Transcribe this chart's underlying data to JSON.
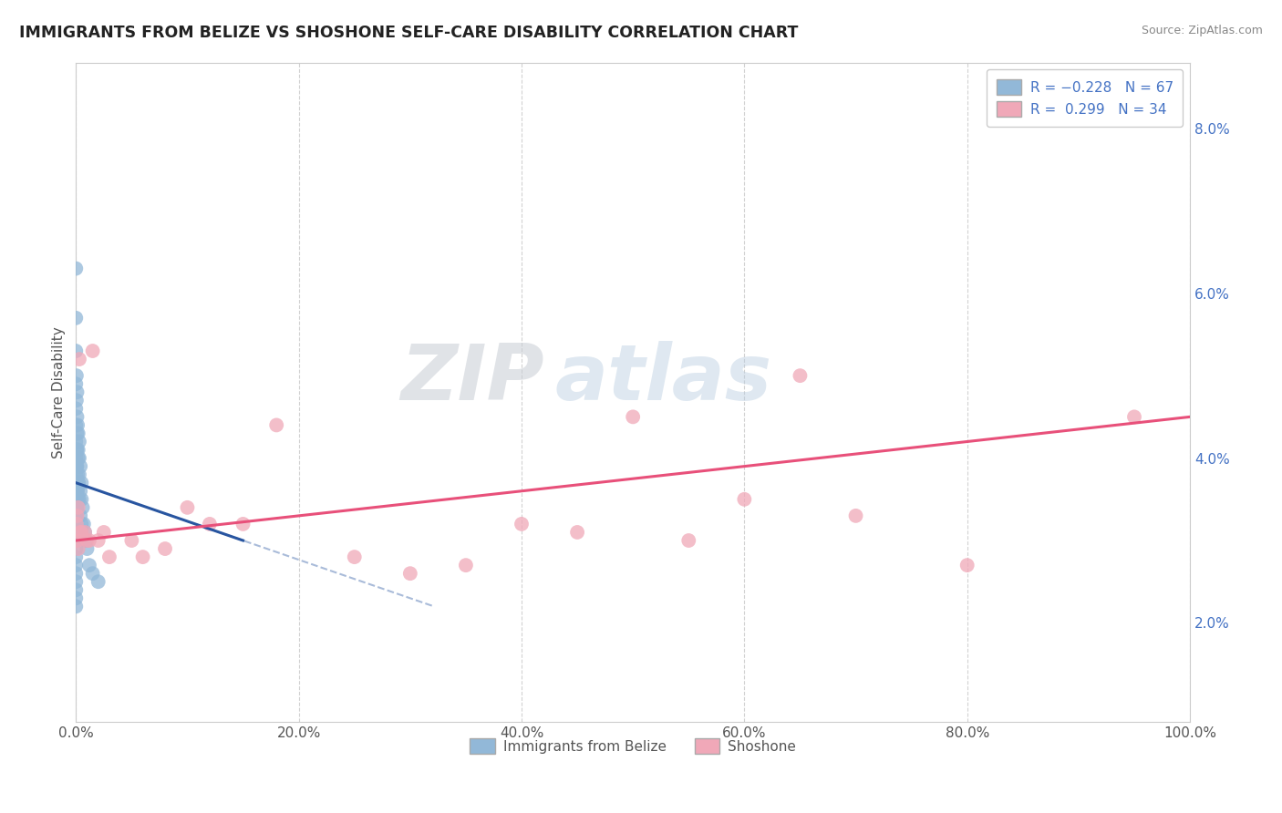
{
  "title": "IMMIGRANTS FROM BELIZE VS SHOSHONE SELF-CARE DISABILITY CORRELATION CHART",
  "source": "Source: ZipAtlas.com",
  "ylabel": "Self-Care Disability",
  "xlim": [
    0,
    100
  ],
  "ylim": [
    0.8,
    8.8
  ],
  "yticks": [
    2.0,
    4.0,
    6.0,
    8.0
  ],
  "xticks": [
    0,
    20,
    40,
    60,
    80,
    100
  ],
  "blue_color": "#92b8d8",
  "pink_color": "#f0a8b8",
  "blue_line_color": "#2855a0",
  "pink_line_color": "#e8507a",
  "legend_blue_label": "R = -0.228   N = 67",
  "legend_pink_label": "R =  0.299   N = 34",
  "legend_label_belize": "Immigrants from Belize",
  "legend_label_shoshone": "Shoshone",
  "R_blue": -0.228,
  "N_blue": 67,
  "R_pink": 0.299,
  "N_pink": 34,
  "blue_x": [
    0.0,
    0.0,
    0.0,
    0.0,
    0.0,
    0.0,
    0.0,
    0.0,
    0.0,
    0.0,
    0.0,
    0.0,
    0.0,
    0.0,
    0.0,
    0.0,
    0.0,
    0.0,
    0.0,
    0.0,
    0.05,
    0.05,
    0.05,
    0.05,
    0.05,
    0.1,
    0.1,
    0.1,
    0.1,
    0.1,
    0.15,
    0.15,
    0.2,
    0.2,
    0.2,
    0.25,
    0.3,
    0.3,
    0.4,
    0.4,
    0.5,
    0.5,
    0.6,
    0.7,
    0.8,
    0.9,
    1.0,
    1.2,
    1.5,
    2.0,
    0.0,
    0.0,
    0.0,
    0.0,
    0.0,
    0.0,
    0.05,
    0.05,
    0.1,
    0.1,
    0.15,
    0.2,
    0.2,
    0.3,
    0.3,
    0.4,
    0.5
  ],
  "blue_y": [
    4.4,
    4.2,
    4.0,
    3.9,
    3.8,
    3.7,
    3.6,
    3.5,
    3.4,
    3.3,
    3.2,
    3.1,
    3.0,
    2.9,
    2.8,
    2.7,
    2.6,
    2.5,
    2.4,
    2.3,
    4.1,
    3.9,
    3.7,
    3.5,
    3.3,
    4.3,
    4.1,
    3.9,
    3.6,
    3.4,
    3.8,
    3.6,
    4.0,
    3.7,
    3.5,
    3.7,
    3.8,
    3.5,
    3.6,
    3.3,
    3.5,
    3.2,
    3.4,
    3.2,
    3.1,
    3.0,
    2.9,
    2.7,
    2.6,
    2.5,
    6.3,
    5.7,
    5.3,
    4.9,
    4.6,
    2.2,
    5.0,
    4.7,
    4.8,
    4.5,
    4.4,
    4.3,
    4.1,
    4.2,
    4.0,
    3.9,
    3.7
  ],
  "pink_x": [
    0.05,
    0.1,
    0.2,
    0.5,
    1.0,
    1.5,
    2.5,
    5.0,
    8.0,
    12.0,
    18.0,
    25.0,
    35.0,
    40.0,
    45.0,
    55.0,
    60.0,
    65.0,
    70.0,
    80.0,
    0.2,
    0.3,
    0.8,
    1.2,
    3.0,
    6.0,
    10.0,
    15.0,
    30.0,
    50.0,
    95.0,
    0.1,
    0.4,
    2.0
  ],
  "pink_y": [
    3.2,
    3.0,
    2.9,
    3.1,
    3.0,
    5.3,
    3.1,
    3.0,
    2.9,
    3.2,
    4.4,
    2.8,
    2.7,
    3.2,
    3.1,
    3.0,
    3.5,
    5.0,
    3.3,
    2.7,
    3.4,
    5.2,
    3.1,
    3.0,
    2.8,
    2.8,
    3.4,
    3.2,
    2.6,
    4.5,
    4.5,
    3.3,
    3.1,
    3.0
  ],
  "blue_line_x0": 0,
  "blue_line_y0": 3.7,
  "blue_line_x1": 15,
  "blue_line_y1": 3.0,
  "blue_dash_x0": 10,
  "blue_dash_y0": 3.1,
  "blue_dash_x1": 30,
  "blue_dash_y1": 2.0,
  "pink_line_y_at_0": 3.0,
  "pink_line_y_at_100": 4.5
}
